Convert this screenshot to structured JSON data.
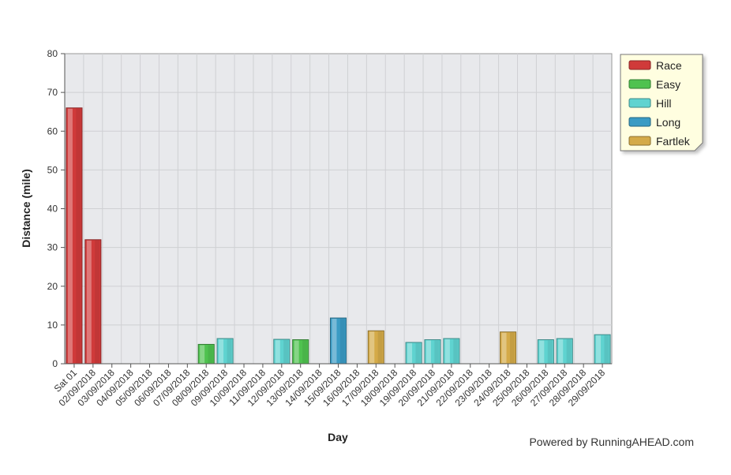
{
  "chart_data": {
    "type": "bar",
    "xlabel": "Day",
    "ylabel": "Distance (mile)",
    "ylim": [
      0,
      80
    ],
    "yticks": [
      0,
      10,
      20,
      30,
      40,
      50,
      60,
      70,
      80
    ],
    "grid": true,
    "legend_position": "top-right",
    "categories": [
      "Sat 01",
      "02/09/2018",
      "03/09/2018",
      "04/09/2018",
      "05/09/2018",
      "06/09/2018",
      "07/09/2018",
      "08/09/2018",
      "09/09/2018",
      "10/09/2018",
      "11/09/2018",
      "12/09/2018",
      "13/09/2018",
      "14/09/2018",
      "15/09/2018",
      "16/09/2018",
      "17/09/2018",
      "18/09/2018",
      "19/09/2018",
      "20/09/2018",
      "21/09/2018",
      "22/09/2018",
      "23/09/2018",
      "24/09/2018",
      "25/09/2018",
      "26/09/2018",
      "27/09/2018",
      "28/09/2018",
      "29/09/2018"
    ],
    "series": [
      {
        "name": "Race",
        "color": "#d03a3a",
        "values": [
          66,
          32,
          0,
          0,
          0,
          0,
          0,
          0,
          0,
          0,
          0,
          0,
          0,
          0,
          0,
          0,
          0,
          0,
          0,
          0,
          0,
          0,
          0,
          0,
          0,
          0,
          0,
          0,
          0
        ]
      },
      {
        "name": "Easy",
        "color": "#4fc24f",
        "values": [
          0,
          0,
          0,
          0,
          0,
          0,
          0,
          5,
          0,
          0,
          0,
          0,
          6.2,
          0,
          0,
          0,
          0,
          0,
          0,
          0,
          0,
          0,
          0,
          0,
          0,
          0,
          0,
          0,
          0
        ]
      },
      {
        "name": "Hill",
        "color": "#5fd3d0",
        "values": [
          0,
          0,
          0,
          0,
          0,
          0,
          0,
          0,
          6.5,
          0,
          0,
          6.3,
          0,
          0,
          0,
          0,
          0,
          0,
          5.5,
          6.2,
          6.5,
          0,
          0,
          0,
          0,
          6.2,
          6.5,
          0,
          7.5
        ]
      },
      {
        "name": "Long",
        "color": "#3a9bc4",
        "values": [
          0,
          0,
          0,
          0,
          0,
          0,
          0,
          0,
          0,
          0,
          0,
          0,
          0,
          0,
          11.8,
          0,
          0,
          0,
          0,
          0,
          0,
          0,
          0,
          0,
          0,
          0,
          0,
          0,
          0
        ]
      },
      {
        "name": "Fartlek",
        "color": "#d4aa48",
        "values": [
          0,
          0,
          0,
          0,
          0,
          0,
          0,
          0,
          0,
          0,
          0,
          0,
          0,
          0,
          0,
          0,
          8.5,
          0,
          0,
          0,
          0,
          0,
          0,
          8.2,
          0,
          0,
          0,
          0,
          0
        ]
      }
    ]
  },
  "credit": "Powered by RunningAHEAD.com"
}
